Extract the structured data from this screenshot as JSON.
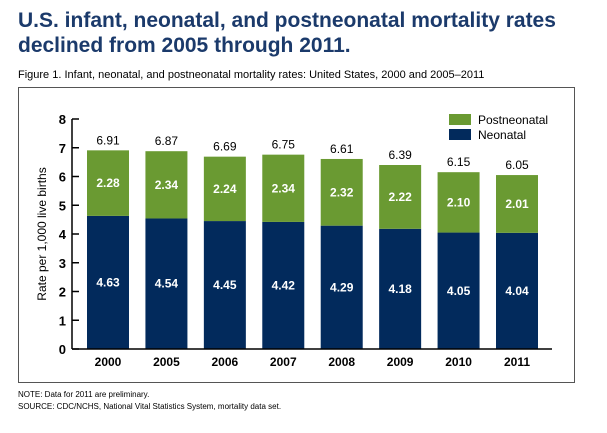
{
  "headline": "U.S. infant, neonatal, and postneonatal mortality rates declined from 2005 through 2011.",
  "figure_title": "Figure 1. Infant, neonatal, and postneonatal mortality rates: United States, 2000 and 2005–2011",
  "notes": {
    "note": "NOTE: Data for 2011 are preliminary.",
    "source": "SOURCE: CDC/NCHS, National Vital Statistics System, mortality data set."
  },
  "colors": {
    "postneonatal": "#6a9a32",
    "neonatal": "#022a5c",
    "headline": "#1b3a6b"
  },
  "chart_data": {
    "type": "bar",
    "stacked": true,
    "title": "Figure 1. Infant, neonatal, and postneonatal mortality rates: United States, 2000 and 2005–2011",
    "xlabel": "",
    "ylabel": "Rate per 1,000 live births",
    "ylim": [
      0,
      8
    ],
    "yticks": [
      0,
      1,
      2,
      3,
      4,
      5,
      6,
      7,
      8
    ],
    "grid": false,
    "legend_position": "top-right",
    "categories": [
      "2000",
      "2005",
      "2006",
      "2007",
      "2008",
      "2009",
      "2010",
      "2011"
    ],
    "series": [
      {
        "name": "Neonatal",
        "values": [
          4.63,
          4.54,
          4.45,
          4.42,
          4.29,
          4.18,
          4.05,
          4.04
        ]
      },
      {
        "name": "Postneonatal",
        "values": [
          2.28,
          2.34,
          2.24,
          2.34,
          2.32,
          2.22,
          2.1,
          2.01
        ]
      }
    ],
    "totals": [
      "6.91",
      "6.87",
      "6.69",
      "6.75",
      "6.61",
      "6.39",
      "6.15",
      "6.05"
    ],
    "legend": [
      "Postneonatal",
      "Neonatal"
    ]
  }
}
